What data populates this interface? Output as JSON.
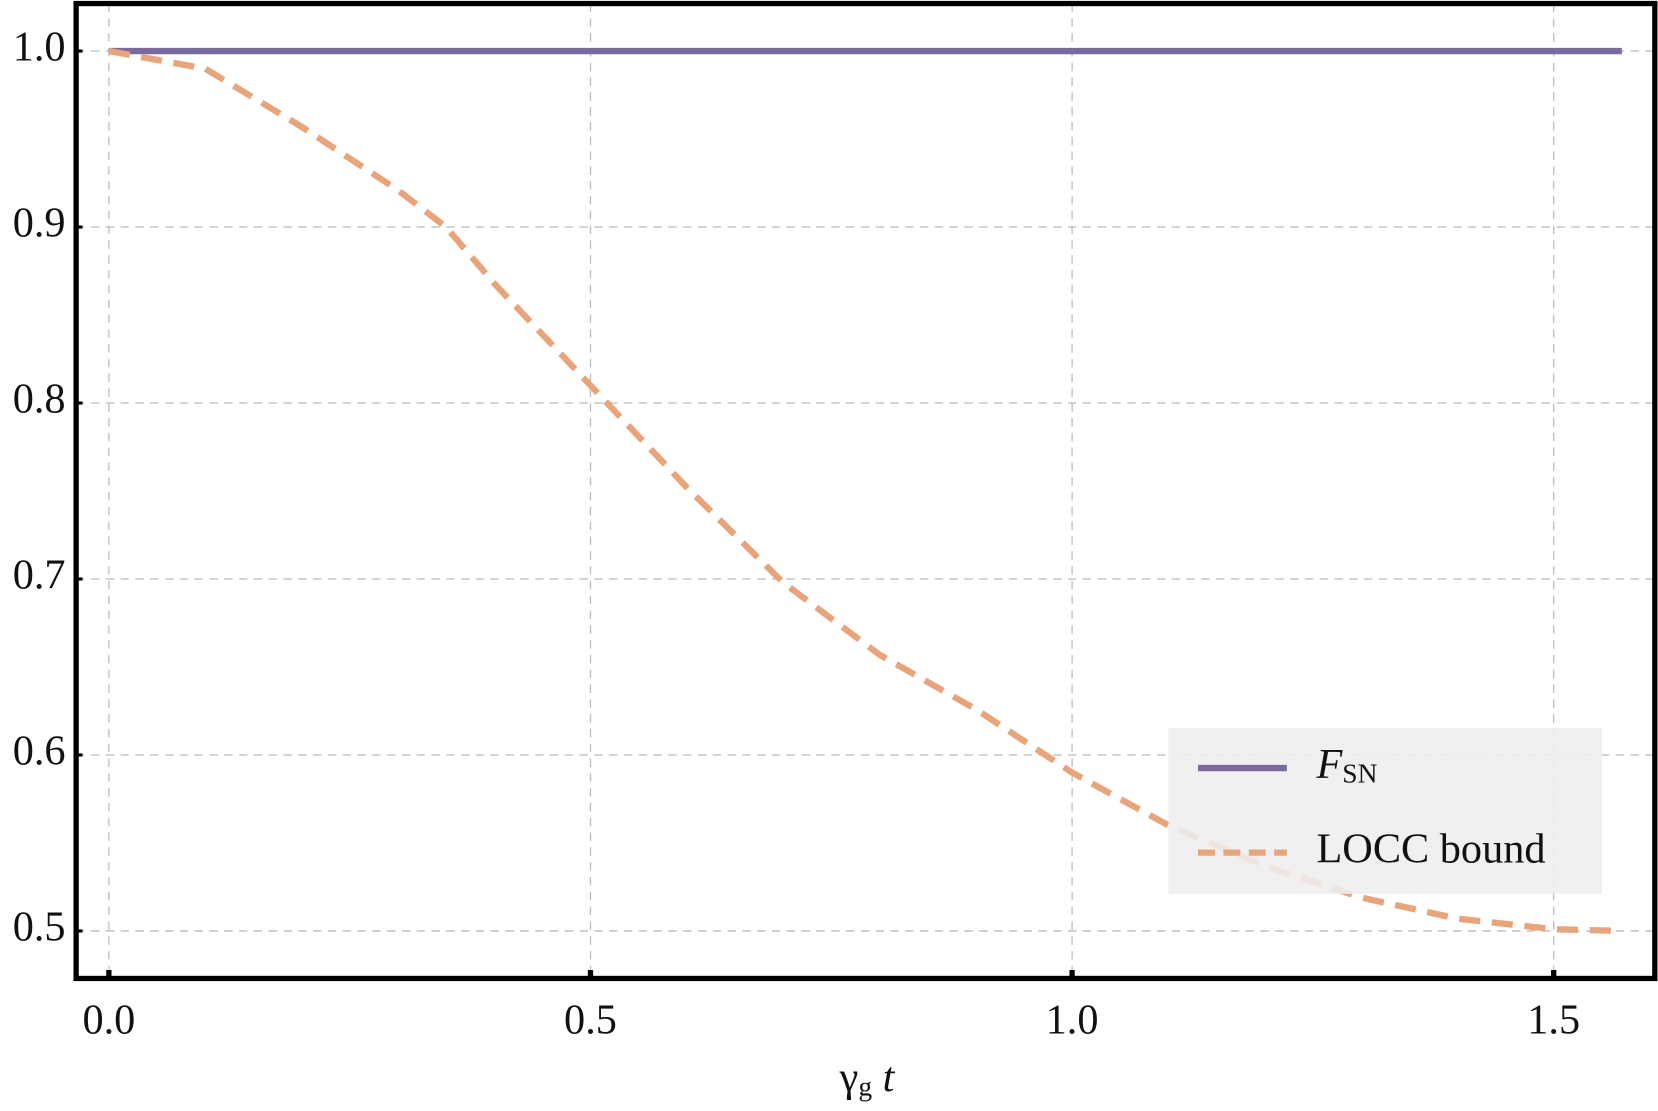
{
  "chart_data": {
    "type": "line",
    "x_label": "γg t",
    "xlim": [
      -0.034,
      1.605
    ],
    "ylim": [
      0.473,
      1.027
    ],
    "xticks": [
      {
        "value": 0,
        "label": "0.0"
      },
      0.5,
      {
        "value": 1,
        "label": "1.0"
      },
      1.5
    ],
    "yticks": [
      0.5,
      0.6,
      0.7,
      0.8,
      0.9,
      {
        "value": 1,
        "label": "1.0"
      }
    ],
    "grid": true,
    "legend": "lower right",
    "series": [
      {
        "name": "FSN",
        "color": "#7a6a9c",
        "style": "solid",
        "x": [
          0,
          1.5708
        ],
        "values": [
          1.0,
          1.0
        ]
      },
      {
        "name": "LOCC bound",
        "color": "#e8a57c",
        "style": "dashed",
        "x": [
          0,
          0.1,
          0.2,
          0.3,
          0.35,
          0.4,
          0.5,
          0.6,
          0.7,
          0.8,
          0.9,
          1.0,
          1.1,
          1.2,
          1.3,
          1.4,
          1.5,
          1.5708
        ],
        "values": [
          1.0,
          0.99,
          0.957,
          0.921,
          0.9,
          0.868,
          0.81,
          0.752,
          0.698,
          0.657,
          0.626,
          0.59,
          0.56,
          0.537,
          0.519,
          0.507,
          0.501,
          0.5
        ]
      }
    ]
  }
}
